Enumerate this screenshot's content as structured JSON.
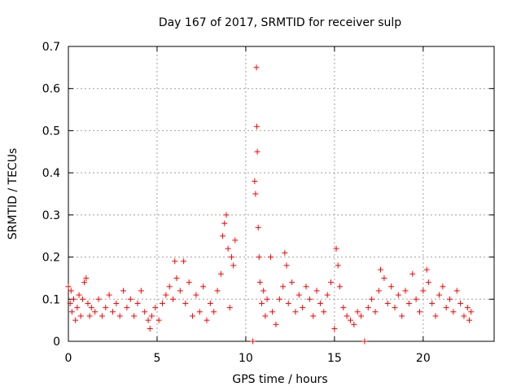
{
  "chart_data": {
    "type": "scatter",
    "title": "Day 167 of 2017, SRMTID for receiver sulp",
    "xlabel": "GPS time / hours",
    "ylabel": "SRMTID / TECUs",
    "xlim": [
      0,
      24
    ],
    "ylim": [
      0,
      0.7
    ],
    "x_ticks": [
      0,
      5,
      10,
      15,
      20
    ],
    "y_ticks": [
      0,
      0.1,
      0.2,
      0.3,
      0.4,
      0.5,
      0.6,
      0.7
    ],
    "x_tick_labels": [
      "0",
      "5",
      "10",
      "15",
      "20"
    ],
    "y_tick_labels": [
      "0",
      "0.1",
      "0.2",
      "0.3",
      "0.4",
      "0.5",
      "0.6",
      "0.7"
    ],
    "grid": true,
    "marker": "+",
    "color": "#ff0000",
    "series": [
      {
        "name": "sulp",
        "points": [
          [
            0.0,
            0.13
          ],
          [
            0.1,
            0.09
          ],
          [
            0.15,
            0.12
          ],
          [
            0.2,
            0.07
          ],
          [
            0.3,
            0.1
          ],
          [
            0.4,
            0.05
          ],
          [
            0.5,
            0.08
          ],
          [
            0.6,
            0.11
          ],
          [
            0.7,
            0.06
          ],
          [
            0.8,
            0.1
          ],
          [
            0.9,
            0.14
          ],
          [
            1.0,
            0.15
          ],
          [
            1.1,
            0.09
          ],
          [
            1.2,
            0.06
          ],
          [
            1.3,
            0.08
          ],
          [
            1.5,
            0.07
          ],
          [
            1.7,
            0.1
          ],
          [
            1.9,
            0.06
          ],
          [
            2.1,
            0.08
          ],
          [
            2.3,
            0.11
          ],
          [
            2.5,
            0.07
          ],
          [
            2.7,
            0.09
          ],
          [
            2.9,
            0.06
          ],
          [
            3.1,
            0.12
          ],
          [
            3.3,
            0.08
          ],
          [
            3.5,
            0.1
          ],
          [
            3.7,
            0.06
          ],
          [
            3.9,
            0.09
          ],
          [
            4.1,
            0.12
          ],
          [
            4.3,
            0.07
          ],
          [
            4.5,
            0.05
          ],
          [
            4.6,
            0.03
          ],
          [
            4.7,
            0.06
          ],
          [
            4.9,
            0.08
          ],
          [
            5.1,
            0.05
          ],
          [
            5.3,
            0.09
          ],
          [
            5.5,
            0.11
          ],
          [
            5.7,
            0.13
          ],
          [
            5.9,
            0.1
          ],
          [
            6.0,
            0.19
          ],
          [
            6.1,
            0.15
          ],
          [
            6.3,
            0.12
          ],
          [
            6.5,
            0.19
          ],
          [
            6.6,
            0.09
          ],
          [
            6.8,
            0.14
          ],
          [
            7.0,
            0.06
          ],
          [
            7.2,
            0.11
          ],
          [
            7.4,
            0.07
          ],
          [
            7.6,
            0.13
          ],
          [
            7.8,
            0.05
          ],
          [
            8.0,
            0.09
          ],
          [
            8.2,
            0.07
          ],
          [
            8.4,
            0.12
          ],
          [
            8.6,
            0.16
          ],
          [
            8.7,
            0.25
          ],
          [
            8.8,
            0.28
          ],
          [
            8.9,
            0.3
          ],
          [
            9.0,
            0.22
          ],
          [
            9.1,
            0.08
          ],
          [
            9.2,
            0.2
          ],
          [
            9.3,
            0.18
          ],
          [
            9.4,
            0.24
          ],
          [
            10.4,
            0.0
          ],
          [
            10.5,
            0.38
          ],
          [
            10.55,
            0.35
          ],
          [
            10.6,
            0.65
          ],
          [
            10.62,
            0.51
          ],
          [
            10.65,
            0.45
          ],
          [
            10.7,
            0.27
          ],
          [
            10.75,
            0.2
          ],
          [
            10.8,
            0.14
          ],
          [
            10.9,
            0.09
          ],
          [
            11.0,
            0.12
          ],
          [
            11.1,
            0.06
          ],
          [
            11.2,
            0.1
          ],
          [
            11.4,
            0.2
          ],
          [
            11.5,
            0.07
          ],
          [
            11.7,
            0.04
          ],
          [
            11.9,
            0.1
          ],
          [
            12.1,
            0.13
          ],
          [
            12.2,
            0.21
          ],
          [
            12.3,
            0.18
          ],
          [
            12.4,
            0.09
          ],
          [
            12.6,
            0.14
          ],
          [
            12.8,
            0.07
          ],
          [
            13.0,
            0.11
          ],
          [
            13.2,
            0.08
          ],
          [
            13.4,
            0.13
          ],
          [
            13.6,
            0.1
          ],
          [
            13.8,
            0.06
          ],
          [
            14.0,
            0.12
          ],
          [
            14.2,
            0.09
          ],
          [
            14.4,
            0.07
          ],
          [
            14.6,
            0.11
          ],
          [
            14.8,
            0.14
          ],
          [
            15.0,
            0.03
          ],
          [
            15.1,
            0.22
          ],
          [
            15.2,
            0.18
          ],
          [
            15.3,
            0.13
          ],
          [
            15.5,
            0.08
          ],
          [
            15.7,
            0.06
          ],
          [
            15.9,
            0.05
          ],
          [
            16.1,
            0.04
          ],
          [
            16.3,
            0.07
          ],
          [
            16.5,
            0.06
          ],
          [
            16.7,
            0.0
          ],
          [
            16.9,
            0.08
          ],
          [
            17.1,
            0.1
          ],
          [
            17.3,
            0.07
          ],
          [
            17.5,
            0.12
          ],
          [
            17.6,
            0.17
          ],
          [
            17.8,
            0.15
          ],
          [
            18.0,
            0.09
          ],
          [
            18.2,
            0.13
          ],
          [
            18.4,
            0.08
          ],
          [
            18.6,
            0.11
          ],
          [
            18.8,
            0.06
          ],
          [
            19.0,
            0.12
          ],
          [
            19.2,
            0.09
          ],
          [
            19.4,
            0.16
          ],
          [
            19.6,
            0.1
          ],
          [
            19.8,
            0.07
          ],
          [
            20.0,
            0.12
          ],
          [
            20.2,
            0.17
          ],
          [
            20.3,
            0.14
          ],
          [
            20.5,
            0.09
          ],
          [
            20.7,
            0.06
          ],
          [
            20.9,
            0.11
          ],
          [
            21.1,
            0.13
          ],
          [
            21.3,
            0.08
          ],
          [
            21.5,
            0.1
          ],
          [
            21.7,
            0.07
          ],
          [
            21.9,
            0.12
          ],
          [
            22.1,
            0.09
          ],
          [
            22.3,
            0.06
          ],
          [
            22.5,
            0.08
          ],
          [
            22.6,
            0.05
          ],
          [
            22.7,
            0.07
          ]
        ]
      }
    ]
  }
}
